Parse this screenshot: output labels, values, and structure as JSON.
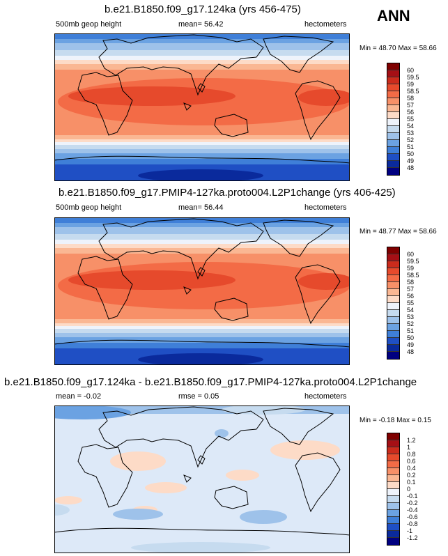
{
  "season": "ANN",
  "panels": [
    {
      "title": "b.e21.B1850.f09_g17.124ka (yrs 456-475)",
      "variable": "500mb geop height",
      "stat_left": "",
      "stat_mid": "mean=  56.42",
      "units": "hectometers",
      "minmax": "Min =  48.70 Max =  58.66",
      "levels": [
        "60",
        "59.5",
        "59",
        "58.5",
        "58",
        "57",
        "56",
        "55",
        "54",
        "53",
        "52",
        "51",
        "50",
        "49",
        "48"
      ]
    },
    {
      "title": "b.e21.B1850.f09_g17.PMIP4-127ka.proto004.L2P1change (yrs 406-425)",
      "variable": "500mb geop height",
      "stat_left": "",
      "stat_mid": "mean=  56.44",
      "units": "hectometers",
      "minmax": "Min =  48.77 Max =  58.66",
      "levels": [
        "60",
        "59.5",
        "59",
        "58.5",
        "58",
        "57",
        "56",
        "55",
        "54",
        "53",
        "52",
        "51",
        "50",
        "49",
        "48"
      ]
    },
    {
      "title": "b.e21.B1850.f09_g17.124ka - b.e21.B1850.f09_g17.PMIP4-127ka.proto004.L2P1change",
      "variable": "",
      "stat_left": "mean =  -0.02",
      "stat_mid": "rmse =  0.05",
      "units": "hectometers",
      "minmax": "Min =  -0.18 Max =  0.15",
      "levels": [
        "1.2",
        "1",
        "0.8",
        "0.6",
        "0.4",
        "0.2",
        "0.1",
        "0",
        "-0.1",
        "-0.2",
        "-0.4",
        "-0.6",
        "-0.8",
        "-1",
        "-1.2"
      ]
    }
  ],
  "colors": {
    "scale": [
      "#7f0000",
      "#a50f15",
      "#cb2b1c",
      "#e64a2c",
      "#f36b46",
      "#f79068",
      "#fab793",
      "#fddbc7",
      "#eef3fb",
      "#c6dbef",
      "#9ec2ea",
      "#6ba2e2",
      "#3f7fd8",
      "#1f4fc4",
      "#0a2a9c",
      "#000080"
    ]
  }
}
